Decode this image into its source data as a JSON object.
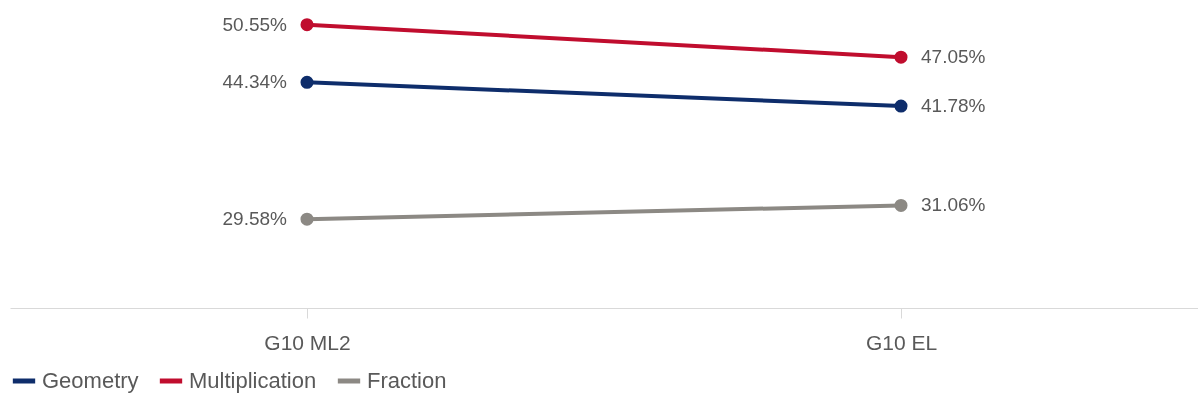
{
  "chart_data": {
    "type": "line",
    "categories": [
      "G10 ML2",
      "G10 EL"
    ],
    "series": [
      {
        "name": "Geometry",
        "color": "#0e2d6b",
        "values": [
          44.34,
          41.78
        ],
        "value_labels": [
          "44.34%",
          "41.78%"
        ]
      },
      {
        "name": "Multiplication",
        "color": "#c00d2e",
        "values": [
          50.55,
          47.05
        ],
        "value_labels": [
          "50.55%",
          "47.05%"
        ]
      },
      {
        "name": "Fraction",
        "color": "#8c8984",
        "values": [
          29.58,
          31.06
        ],
        "value_labels": [
          "29.58%",
          "31.06%"
        ]
      }
    ],
    "ylim": [
      20,
      53
    ],
    "tick_labels": "x",
    "legend": "bottom",
    "marker": "circle"
  }
}
